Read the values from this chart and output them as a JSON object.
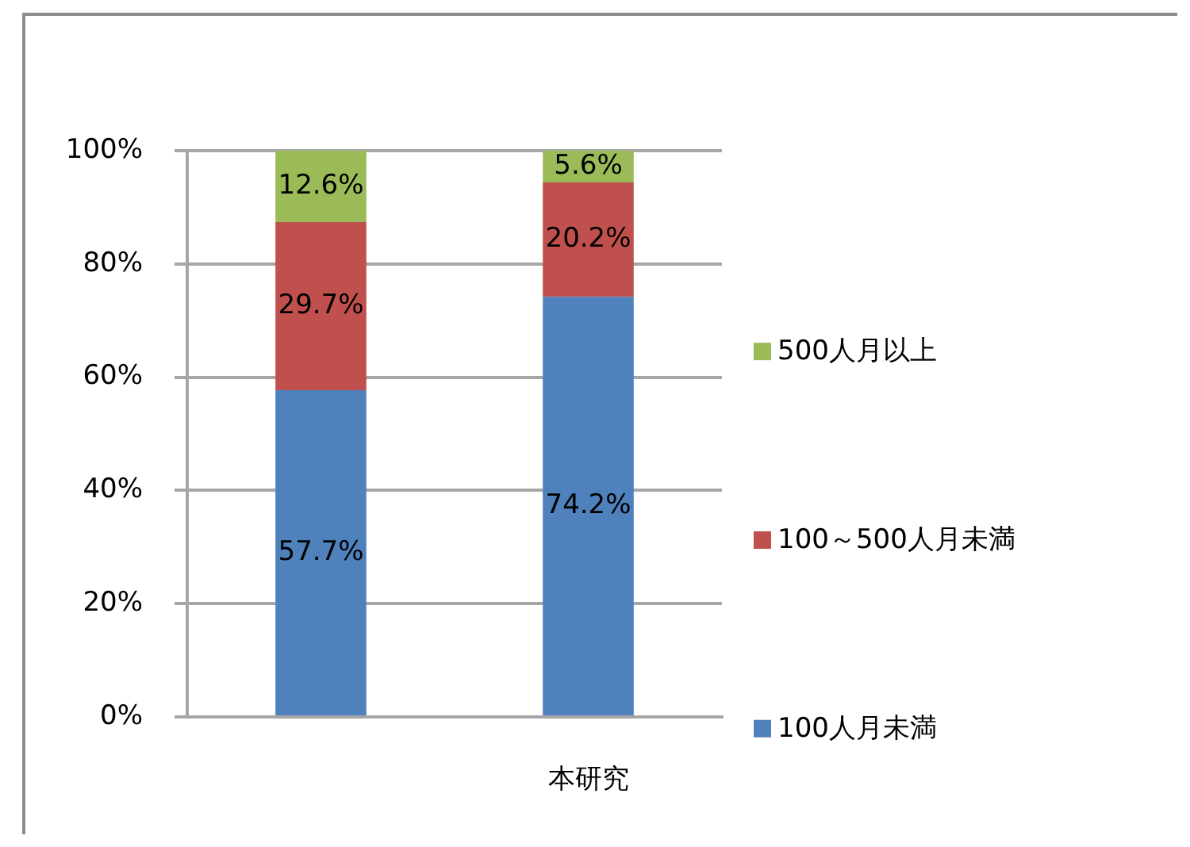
{
  "chart_data": {
    "type": "bar",
    "stacked": true,
    "categories": [
      null,
      "本研究"
    ],
    "series": [
      {
        "name": "100人月未満",
        "color": "#4f81bd",
        "values": [
          57.7,
          74.2
        ],
        "value_labels": [
          "57.7%",
          "74.2%"
        ]
      },
      {
        "name": "100～500人月未満",
        "color": "#c0504d",
        "values": [
          29.7,
          20.2
        ],
        "value_labels": [
          "29.7%",
          "20.2%"
        ]
      },
      {
        "name": "500人月以上",
        "color": "#9bbb59",
        "values": [
          12.6,
          5.6
        ],
        "value_labels": [
          "12.6%",
          "5.6%"
        ]
      }
    ],
    "ylim": [
      0,
      100
    ],
    "yticks": [
      {
        "value": 0,
        "label": "0%"
      },
      {
        "value": 20,
        "label": "20%"
      },
      {
        "value": 40,
        "label": "40%"
      },
      {
        "value": 60,
        "label": "60%"
      },
      {
        "value": 80,
        "label": "80%"
      },
      {
        "value": 100,
        "label": "100%"
      }
    ],
    "grid": "y",
    "legend": "right"
  }
}
